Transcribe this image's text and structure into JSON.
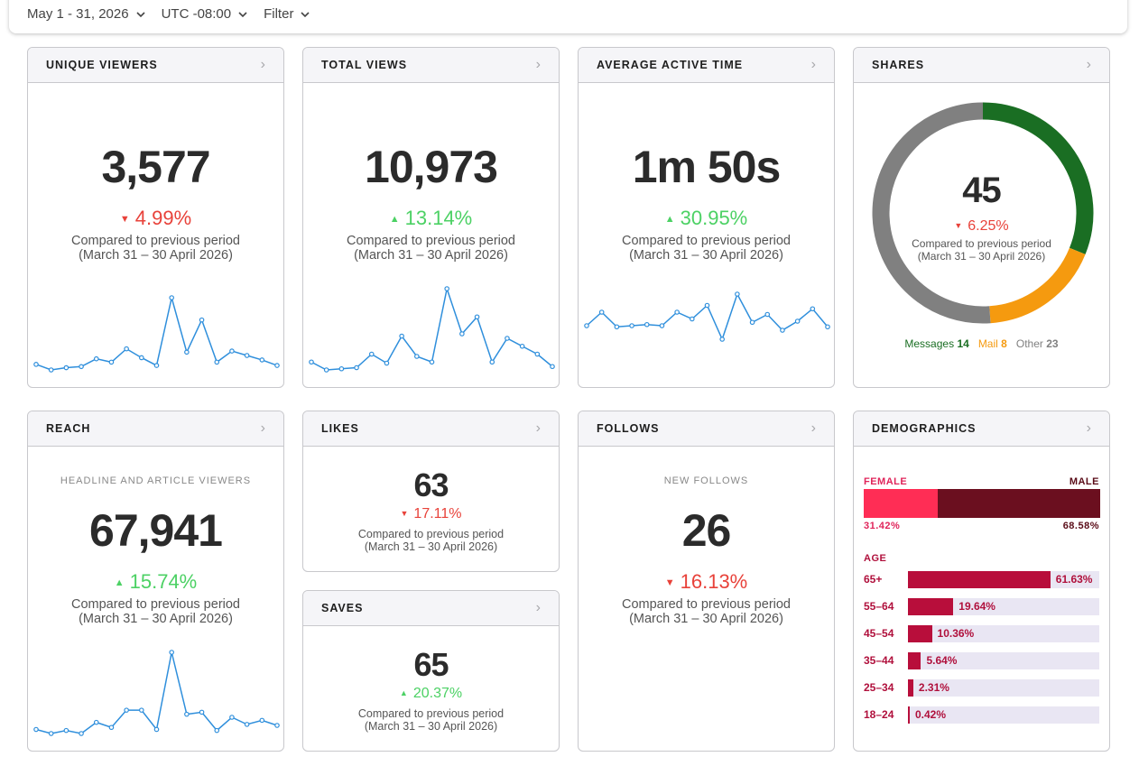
{
  "topbar": {
    "date_range": "May 1 - 31, 2026",
    "timezone": "UTC -08:00",
    "filter": "Filter"
  },
  "compare_line1": "Compared to previous period",
  "compare_line2": "(March 31 – 30 April 2026)",
  "colors": {
    "down": "#e8423a",
    "up": "#4cd164",
    "line": "#2f8fdc",
    "messages": "#1a6e23",
    "mail": "#f59a0f",
    "other": "#808080",
    "female": "#ff2d55",
    "male": "#6b0f1f",
    "age": "#b80e3b"
  },
  "cards": {
    "unique_viewers": {
      "title": "UNIQUE VIEWERS",
      "value": "3,577",
      "change": "4.99%",
      "direction": "down",
      "series": [
        10,
        5,
        7,
        8,
        15,
        12,
        24,
        16,
        9,
        70,
        21,
        50,
        12,
        22,
        18,
        14,
        9
      ]
    },
    "total_views": {
      "title": "TOTAL VIEWS",
      "value": "10,973",
      "change": "13.14%",
      "direction": "up",
      "series": [
        15,
        8,
        9,
        10,
        22,
        14,
        38,
        20,
        15,
        80,
        40,
        55,
        15,
        36,
        29,
        22,
        11
      ]
    },
    "avg_active_time": {
      "title": "AVERAGE ACTIVE TIME",
      "value": "1m 50s",
      "change": "30.95%",
      "direction": "up",
      "series": [
        22,
        34,
        21,
        22,
        23,
        22,
        34,
        28,
        40,
        10,
        50,
        25,
        32,
        18,
        26,
        37,
        21
      ]
    },
    "shares": {
      "title": "SHARES",
      "value": "45",
      "change": "6.25%",
      "direction": "down",
      "legend": [
        {
          "label": "Messages",
          "value": "14"
        },
        {
          "label": "Mail",
          "value": "8"
        },
        {
          "label": "Other",
          "value": "23"
        }
      ]
    },
    "reach": {
      "title": "REACH",
      "sublabel": "HEADLINE AND ARTICLE VIEWERS",
      "value": "67,941",
      "change": "15.74%",
      "direction": "up",
      "series": [
        12,
        8,
        11,
        8,
        19,
        14,
        31,
        31,
        12,
        88,
        27,
        29,
        11,
        24,
        17,
        21,
        16
      ]
    },
    "likes": {
      "title": "LIKES",
      "value": "63",
      "change": "17.11%",
      "direction": "down"
    },
    "saves": {
      "title": "SAVES",
      "value": "65",
      "change": "20.37%",
      "direction": "up"
    },
    "follows": {
      "title": "FOLLOWS",
      "sublabel": "NEW FOLLOWS",
      "value": "26",
      "change": "16.13%",
      "direction": "down"
    },
    "demographics": {
      "title": "DEMOGRAPHICS",
      "female_label": "FEMALE",
      "male_label": "MALE",
      "female_pct": "31.42%",
      "male_pct": "68.58%",
      "female_share": 0.3142,
      "age_label": "AGE",
      "ages": [
        {
          "label": "65+",
          "value": "61.63%",
          "share": 0.6163
        },
        {
          "label": "55–64",
          "value": "19.64%",
          "share": 0.1964
        },
        {
          "label": "45–54",
          "value": "10.36%",
          "share": 0.1036
        },
        {
          "label": "35–44",
          "value": "5.64%",
          "share": 0.0564
        },
        {
          "label": "25–34",
          "value": "2.31%",
          "share": 0.0231
        },
        {
          "label": "18–24",
          "value": "0.42%",
          "share": 0.0042
        }
      ]
    }
  }
}
